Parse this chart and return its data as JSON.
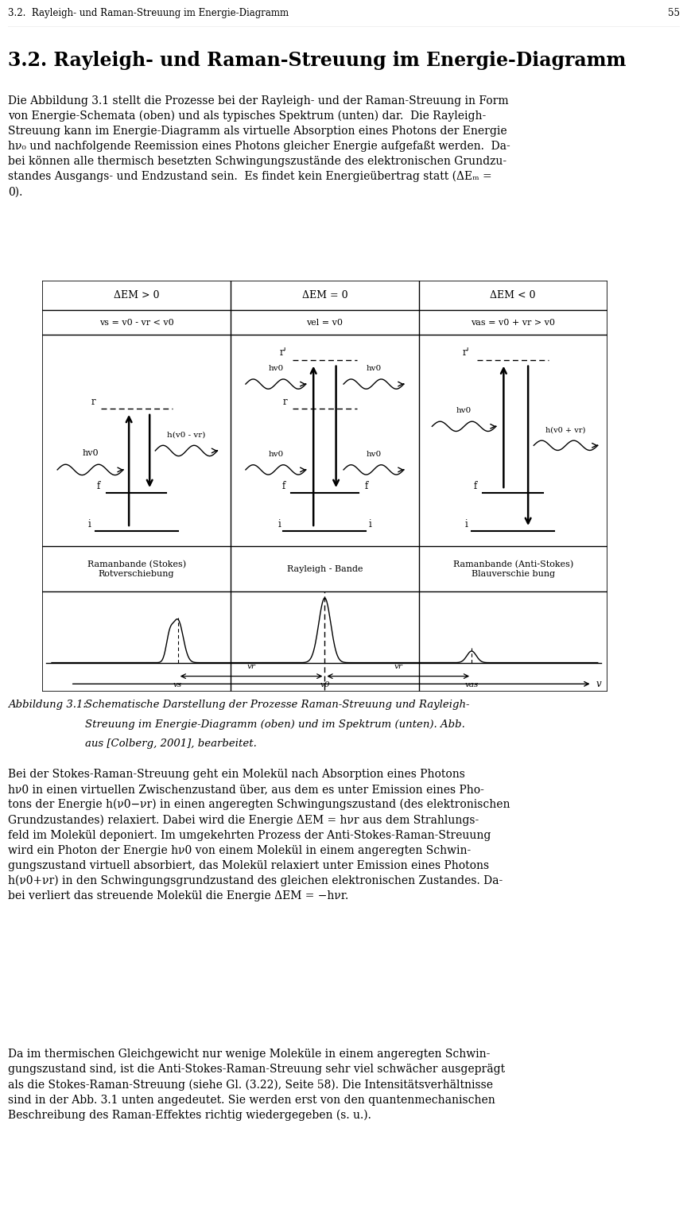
{
  "page_header": "3.2.  Rayleigh- und Raman-Streuung im Energie-Diagramm",
  "page_number": "55",
  "section_title": "3.2. Rayleigh- und Raman-Streuung im Energie-Diagramm",
  "bg_color": "#ffffff",
  "text_color": "#000000",
  "col1_header1": "ΔEM > 0",
  "col2_header1": "ΔEM = 0",
  "col3_header1": "ΔEM < 0",
  "col1_header2": "vs = v0 - vr < v0",
  "col2_header2": "vel = v0",
  "col3_header2": "vas = v0 + vr > v0",
  "col1_label1": "Ramanbande (Stokes)",
  "col1_label2": "Rotverschiebung",
  "col2_label": "Rayleigh - Bande",
  "col3_label1": "Ramanbande (Anti-Stokes)",
  "col3_label2": "Blauverschie bung",
  "caption_label": "Abbildung 3.1:",
  "caption_text1": "Schematische Darstellung der Prozesse Raman-Streuung und Rayleigh-",
  "caption_text2": "Streuung im Energie-Diagramm (oben) und im Spektrum (unten). Abb.",
  "caption_text3": "aus [Colberg, 2001], bearbeitet.",
  "para2_lines": [
    "Bei der Stokes-Raman-Streuung geht ein Molekül nach Absorption eines Photons",
    "hν0 in einen virtuellen Zwischenzustand über, aus dem es unter Emission eines Pho-",
    "tons der Energie h(ν0−νr) in einen angeregten Schwingungszustand (des elektronischen",
    "Grundzustandes) relaxiert. Dabei wird die Energie ΔEM = hνr aus dem Strahlungs-",
    "feld im Molekül deponiert. Im umgekehrten Prozess der Anti-Stokes-Raman-Streuung",
    "wird ein Photon der Energie hν0 von einem Molekül in einem angeregten Schwin-",
    "gungszustand virtuell absorbiert, das Molekül relaxiert unter Emission eines Photons",
    "h(ν0+νr) in den Schwingungsgrundzustand des gleichen elektronischen Zustandes. Da-",
    "bei verliert das streuende Molekül die Energie ΔEM = −hνr."
  ],
  "para3_lines": [
    "Da im thermischen Gleichgewicht nur wenige Moleküle in einem angeregten Schwin-",
    "gungszustand sind, ist die Anti-Stokes-Raman-Streuung sehr viel schwächer ausgeprägt",
    "als die Stokes-Raman-Streuung (siehe Gl. (3.22), Seite 58). Die Intensitätsverhältnisse",
    "sind in der Abb. 3.1 unten angedeutet. Sie werden erst von den quantenmechanischen",
    "Beschreibung des Raman-Effektes richtig wiedergegeben (s. u.)."
  ]
}
